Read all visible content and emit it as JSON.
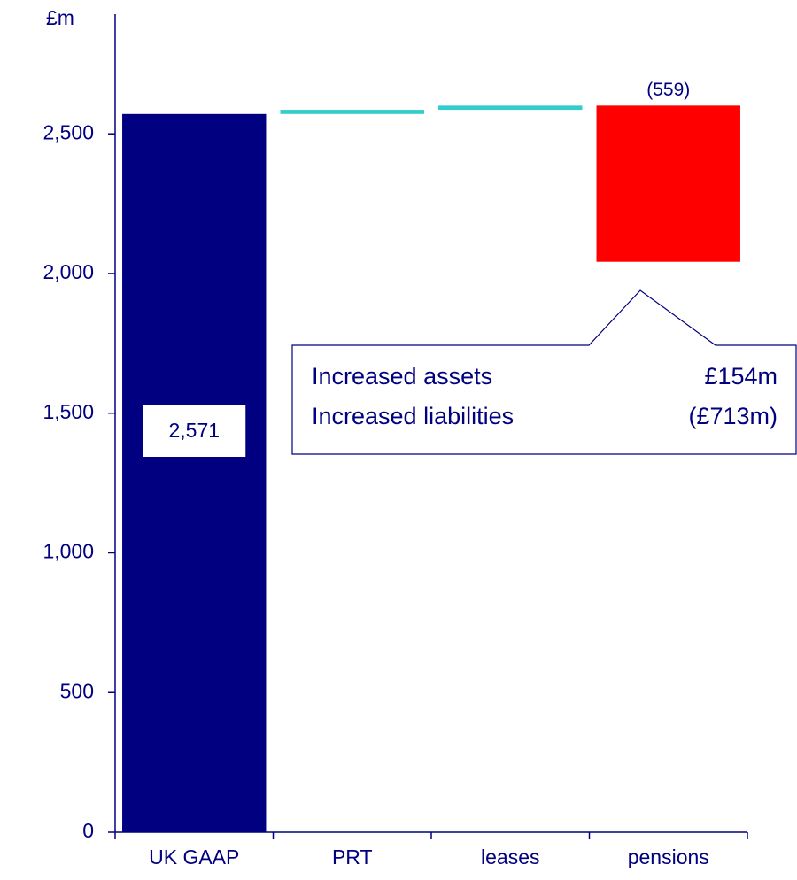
{
  "chart_data": {
    "type": "waterfall",
    "y_label": "£m",
    "categories": [
      "UK GAAP",
      "PRT",
      "leases",
      "pensions"
    ],
    "values": [
      2571,
      15,
      15,
      -559
    ],
    "value_labels": [
      "2,571",
      null,
      null,
      "(559)"
    ],
    "colors": [
      "#000080",
      "#33cccc",
      "#33cccc",
      "#ff0000"
    ],
    "ylim": [
      0,
      2900
    ],
    "yticks": [
      0,
      500,
      {
        "value": 1000,
        "label": "1,000"
      },
      {
        "value": 1500,
        "label": "1,500"
      },
      {
        "value": 2000,
        "label": "2,000"
      },
      {
        "value": 2500,
        "label": "2,500"
      }
    ],
    "callout": {
      "rows": [
        [
          "Increased assets",
          "£154m"
        ],
        [
          "Increased liabilities",
          "(£713m)"
        ]
      ]
    }
  }
}
